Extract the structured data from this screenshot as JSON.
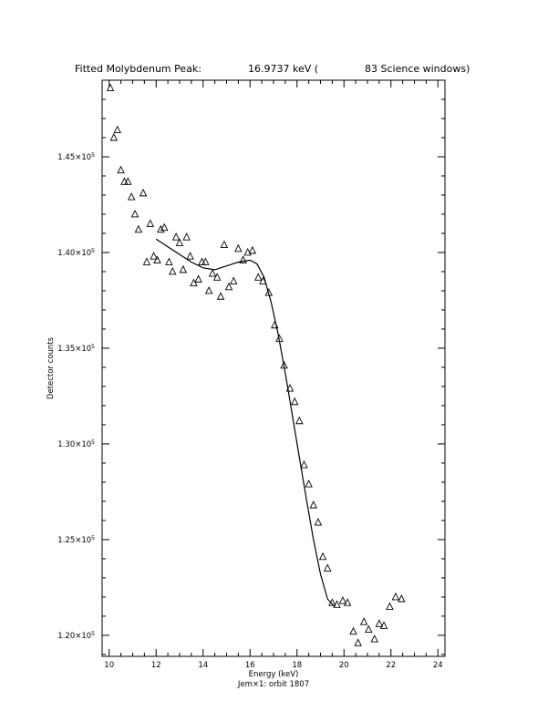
{
  "chart_data": {
    "type": "scatter",
    "title_parts": [
      "Fitted Molybdenum Peak:",
      "16.9737 keV (",
      "83 Science windows)"
    ],
    "xlabel": "Energy (keV)",
    "ylabel": "Detector counts",
    "footer": "Jem×1: orbit 1807",
    "xlim": [
      9.7,
      24.3
    ],
    "ylim": [
      118900,
      149000
    ],
    "x_ticks": [
      {
        "value": 10,
        "label": "10"
      },
      {
        "value": 12,
        "label": "12"
      },
      {
        "value": 14,
        "label": "14"
      },
      {
        "value": 16,
        "label": "16"
      },
      {
        "value": 18,
        "label": "18"
      },
      {
        "value": 20,
        "label": "20"
      },
      {
        "value": 22,
        "label": "22"
      },
      {
        "value": 24,
        "label": "24"
      }
    ],
    "y_ticks": [
      {
        "value": 120000,
        "label": "1.20×10",
        "exp": "5"
      },
      {
        "value": 125000,
        "label": "1.25×10",
        "exp": "5"
      },
      {
        "value": 130000,
        "label": "1.30×10",
        "exp": "5"
      },
      {
        "value": 135000,
        "label": "1.35×10",
        "exp": "5"
      },
      {
        "value": 140000,
        "label": "1.40×10",
        "exp": "5"
      },
      {
        "value": 145000,
        "label": "1.45×10",
        "exp": "5"
      }
    ],
    "series": [
      {
        "marker": "triangle",
        "points": [
          [
            10.05,
            148600
          ],
          [
            10.2,
            146000
          ],
          [
            10.35,
            146400
          ],
          [
            10.5,
            144300
          ],
          [
            10.65,
            143700
          ],
          [
            10.8,
            143700
          ],
          [
            10.95,
            142900
          ],
          [
            11.1,
            142000
          ],
          [
            11.25,
            141200
          ],
          [
            11.45,
            143100
          ],
          [
            11.6,
            139500
          ],
          [
            11.75,
            141500
          ],
          [
            11.9,
            139800
          ],
          [
            12.05,
            139600
          ],
          [
            12.2,
            141200
          ],
          [
            12.35,
            141300
          ],
          [
            12.55,
            139500
          ],
          [
            12.7,
            139000
          ],
          [
            12.85,
            140800
          ],
          [
            13.0,
            140500
          ],
          [
            13.15,
            139100
          ],
          [
            13.3,
            140800
          ],
          [
            13.45,
            139800
          ],
          [
            13.6,
            138400
          ],
          [
            13.8,
            138600
          ],
          [
            13.95,
            139500
          ],
          [
            14.1,
            139500
          ],
          [
            14.25,
            138000
          ],
          [
            14.4,
            138900
          ],
          [
            14.6,
            138700
          ],
          [
            14.75,
            137700
          ],
          [
            14.9,
            140400
          ],
          [
            15.1,
            138200
          ],
          [
            15.3,
            138500
          ],
          [
            15.5,
            140200
          ],
          [
            15.7,
            139600
          ],
          [
            15.9,
            140000
          ],
          [
            16.1,
            140100
          ],
          [
            16.35,
            138700
          ],
          [
            16.55,
            138500
          ],
          [
            16.8,
            137900
          ],
          [
            17.05,
            136200
          ],
          [
            17.25,
            135500
          ],
          [
            17.45,
            134100
          ],
          [
            17.7,
            132900
          ],
          [
            17.9,
            132200
          ],
          [
            18.1,
            131200
          ],
          [
            18.3,
            128900
          ],
          [
            18.5,
            127900
          ],
          [
            18.7,
            126800
          ],
          [
            18.9,
            125900
          ],
          [
            19.1,
            124100
          ],
          [
            19.3,
            123500
          ],
          [
            19.5,
            121700
          ],
          [
            19.7,
            121600
          ],
          [
            19.95,
            121800
          ],
          [
            20.15,
            121700
          ],
          [
            20.4,
            120200
          ],
          [
            20.6,
            119600
          ],
          [
            20.85,
            120700
          ],
          [
            21.05,
            120300
          ],
          [
            21.3,
            119800
          ],
          [
            21.5,
            120600
          ],
          [
            21.7,
            120500
          ],
          [
            21.95,
            121500
          ],
          [
            22.2,
            122000
          ],
          [
            22.45,
            121900
          ]
        ]
      }
    ],
    "fit_curve": [
      [
        12.0,
        140700
      ],
      [
        12.5,
        140300
      ],
      [
        13.0,
        139900
      ],
      [
        13.5,
        139500
      ],
      [
        14.0,
        139200
      ],
      [
        14.5,
        139100
      ],
      [
        15.0,
        139300
      ],
      [
        15.5,
        139500
      ],
      [
        16.0,
        139600
      ],
      [
        16.3,
        139400
      ],
      [
        16.6,
        138700
      ],
      [
        16.9,
        137400
      ],
      [
        17.2,
        135700
      ],
      [
        17.5,
        133700
      ],
      [
        17.8,
        131500
      ],
      [
        18.1,
        129300
      ],
      [
        18.4,
        127100
      ],
      [
        18.7,
        125000
      ],
      [
        19.0,
        123200
      ],
      [
        19.3,
        121900
      ],
      [
        19.6,
        121500
      ]
    ]
  }
}
